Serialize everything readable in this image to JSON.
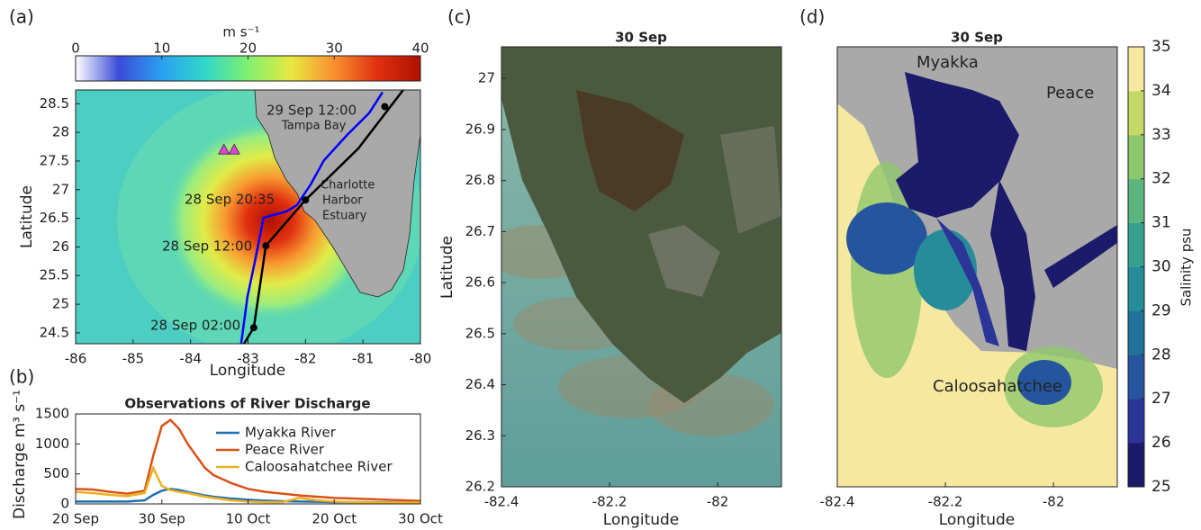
{
  "chart_data": [
    {
      "type": "map",
      "panel_label": "(a)",
      "xlabel": "Longitude",
      "ylabel": "Latitude",
      "xlim": [
        -86,
        -80
      ],
      "ylim": [
        24.31,
        28.74
      ],
      "xticks": [
        -86,
        -85,
        -84,
        -83,
        -82,
        -81,
        -80
      ],
      "yticks": [
        24.5,
        25,
        25.5,
        26,
        26.5,
        27,
        27.5,
        28,
        28.5
      ],
      "colorbar": {
        "label": "m s⁻¹",
        "lim": [
          0,
          40
        ],
        "ticks": [
          0,
          10,
          20,
          30,
          40
        ],
        "orientation": "horizontal",
        "colors": [
          "#ffffff",
          "#3b4bd8",
          "#2aa0f0",
          "#30d8c8",
          "#80f070",
          "#e8e840",
          "#f89030",
          "#e03010",
          "#b01000"
        ]
      },
      "annotations": [
        "29 Sep 12:00",
        "Tampa Bay",
        "28 Sep 20:35",
        "Charlotte",
        "Harbor",
        "Estuary",
        "28 Sep 12:00",
        "28 Sep 02:00"
      ],
      "series": [
        {
          "color": "#000000",
          "mode": "line",
          "x": [
            -83.07,
            -82.9,
            -82.69,
            -82.0,
            -81.08,
            -80.3
          ],
          "y": [
            24.31,
            24.59,
            26.02,
            26.82,
            27.72,
            28.74
          ]
        },
        {
          "color": "#0000ff",
          "mode": "line",
          "x": [
            -83.12,
            -83.01,
            -82.88,
            -82.73,
            -82.62,
            -82.33,
            -82.15,
            -81.91,
            -81.68,
            -81.28,
            -80.89,
            -80.66
          ],
          "y": [
            24.31,
            25.13,
            25.75,
            26.51,
            26.54,
            26.62,
            26.73,
            27.09,
            27.51,
            27.95,
            28.34,
            28.7
          ]
        },
        {
          "color": "#000000",
          "mode": "markers",
          "x": [
            -82.9,
            -82.69,
            -82.0,
            -80.62
          ],
          "y": [
            24.59,
            26.02,
            26.82,
            28.45
          ]
        },
        {
          "color": "#e040e0",
          "mode": "triangles",
          "x": [
            -83.42,
            -83.24
          ],
          "y": [
            27.7,
            27.7
          ]
        }
      ]
    },
    {
      "type": "line",
      "panel_label": "(b)",
      "title": "Observations of River Discharge",
      "ylabel": "Discharge m³ s⁻¹",
      "xlim": [
        0,
        40
      ],
      "ylim": [
        0,
        1500
      ],
      "xticks": [
        {
          "value": 0,
          "label": "20 Sep"
        },
        {
          "value": 10,
          "label": "30 Sep"
        },
        {
          "value": 20,
          "label": "10 Oct"
        },
        {
          "value": 30,
          "label": "20 Oct"
        },
        {
          "value": 40,
          "label": "30 Oct"
        }
      ],
      "yticks": [
        0,
        500,
        1000,
        1500
      ],
      "x": [
        0,
        2,
        4,
        6,
        8,
        9,
        10,
        11,
        12,
        13,
        14,
        15,
        16,
        18,
        20,
        22,
        24,
        26,
        28,
        30,
        32,
        34,
        36,
        38,
        40
      ],
      "series": [
        {
          "name": "Myakka River",
          "color": "#1f6fb4",
          "values": [
            40,
            40,
            40,
            40,
            60,
            150,
            220,
            250,
            230,
            200,
            170,
            140,
            120,
            90,
            70,
            55,
            45,
            40,
            35,
            30,
            30,
            28,
            25,
            22,
            20
          ]
        },
        {
          "name": "Peace River",
          "color": "#d95319",
          "values": [
            250,
            240,
            200,
            170,
            220,
            800,
            1300,
            1400,
            1250,
            1000,
            800,
            600,
            480,
            350,
            250,
            200,
            170,
            140,
            120,
            100,
            90,
            80,
            70,
            60,
            50
          ]
        },
        {
          "name": "Caloosahatchee River",
          "color": "#edb120",
          "values": [
            200,
            180,
            150,
            130,
            180,
            600,
            300,
            230,
            200,
            180,
            150,
            120,
            100,
            60,
            40,
            30,
            30,
            100,
            60,
            40,
            30,
            25,
            20,
            20,
            20
          ]
        }
      ]
    },
    {
      "type": "image",
      "panel_label": "(c)",
      "title": "30 Sep",
      "xlabel": "Longitude",
      "ylabel": "Latitude",
      "xlim": [
        -82.4,
        -81.882
      ],
      "ylim": [
        26.2,
        27.062
      ],
      "xticks": [
        -82.4,
        -82.2,
        -82
      ],
      "yticks": [
        26.2,
        26.3,
        26.4,
        26.5,
        26.6,
        26.7,
        26.8,
        26.9,
        27
      ]
    },
    {
      "type": "map",
      "panel_label": "(d)",
      "title": "30 Sep",
      "xlabel": "Longitude",
      "xlim": [
        -82.4,
        -81.882
      ],
      "ylim": [
        26.2,
        27.062
      ],
      "xticks": [
        -82.4,
        -82.2,
        -82
      ],
      "annotations": [
        "Myakka",
        "Peace",
        "Caloosahatchee"
      ],
      "colorbar": {
        "label": "Salinity psu",
        "lim": [
          25,
          35
        ],
        "ticks": [
          25,
          26,
          27,
          28,
          29,
          30,
          31,
          32,
          33,
          34,
          35
        ],
        "orientation": "vertical",
        "colors": [
          "#1c1a6a",
          "#2a3597",
          "#24559e",
          "#1f739b",
          "#258c99",
          "#35a090",
          "#5ab57f",
          "#8ec86c",
          "#c4d964",
          "#f7e8a0"
        ]
      }
    }
  ]
}
